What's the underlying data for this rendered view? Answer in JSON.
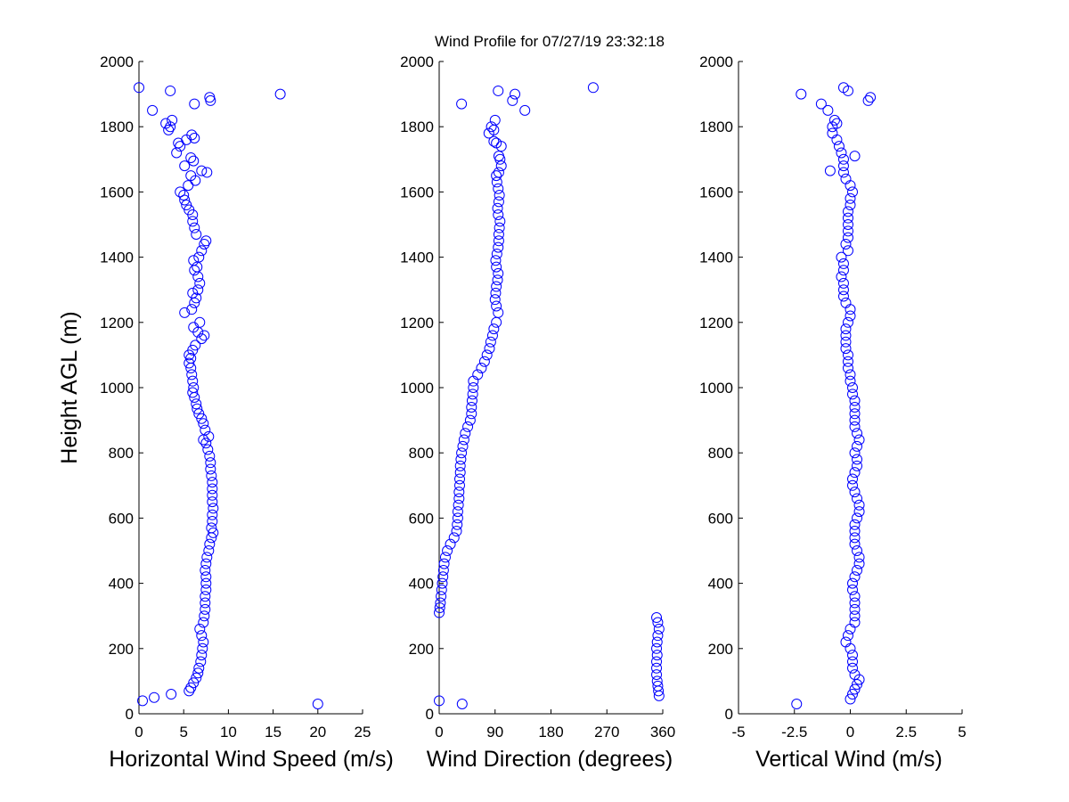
{
  "figure": {
    "title": "Wind Profile for  07/27/19 23:32:18",
    "background": "#ffffff",
    "marker_color": "#0000ff"
  },
  "chart_data": [
    {
      "type": "scatter",
      "id": "speed",
      "xlabel": "Horizontal Wind Speed (m/s)",
      "ylabel": "Height AGL (m)",
      "xlim": [
        0,
        25
      ],
      "ylim": [
        0,
        2000
      ],
      "xticks": [
        0,
        5,
        10,
        15,
        20,
        25
      ],
      "xtick_labels": [
        "0",
        "5",
        "10",
        "15",
        "20",
        "25"
      ],
      "yticks": [
        0,
        200,
        400,
        600,
        800,
        1000,
        1200,
        1400,
        1600,
        1800,
        2000
      ],
      "ytick_labels": [
        "0",
        "200",
        "400",
        "600",
        "800",
        "1000",
        "1200",
        "1400",
        "1600",
        "1800",
        "2000"
      ],
      "marker": "open-circle",
      "grid": false,
      "points": [
        [
          0.4,
          40
        ],
        [
          1.7,
          50
        ],
        [
          3.6,
          60
        ],
        [
          20,
          30
        ],
        [
          5.6,
          70
        ],
        [
          5.8,
          80
        ],
        [
          6.1,
          95
        ],
        [
          6.4,
          110
        ],
        [
          6.6,
          125
        ],
        [
          6.7,
          140
        ],
        [
          6.9,
          160
        ],
        [
          7.0,
          180
        ],
        [
          7.1,
          200
        ],
        [
          7.2,
          220
        ],
        [
          7.0,
          240
        ],
        [
          6.8,
          260
        ],
        [
          7.2,
          280
        ],
        [
          7.3,
          300
        ],
        [
          7.4,
          320
        ],
        [
          7.4,
          340
        ],
        [
          7.4,
          360
        ],
        [
          7.5,
          380
        ],
        [
          7.5,
          400
        ],
        [
          7.5,
          420
        ],
        [
          7.4,
          440
        ],
        [
          7.5,
          460
        ],
        [
          7.6,
          480
        ],
        [
          7.8,
          500
        ],
        [
          7.9,
          520
        ],
        [
          8.1,
          540
        ],
        [
          8.3,
          555
        ],
        [
          8.1,
          570
        ],
        [
          8.2,
          590
        ],
        [
          8.2,
          610
        ],
        [
          8.3,
          630
        ],
        [
          8.2,
          650
        ],
        [
          8.2,
          670
        ],
        [
          8.2,
          690
        ],
        [
          8.2,
          710
        ],
        [
          8.1,
          730
        ],
        [
          8.0,
          750
        ],
        [
          8.0,
          770
        ],
        [
          7.9,
          790
        ],
        [
          7.7,
          810
        ],
        [
          7.5,
          830
        ],
        [
          7.2,
          840
        ],
        [
          7.8,
          850
        ],
        [
          7.4,
          870
        ],
        [
          7.2,
          890
        ],
        [
          7.0,
          905
        ],
        [
          6.7,
          920
        ],
        [
          6.5,
          935
        ],
        [
          6.4,
          950
        ],
        [
          6.2,
          970
        ],
        [
          6.0,
          985
        ],
        [
          6.1,
          1000
        ],
        [
          6.0,
          1020
        ],
        [
          5.9,
          1040
        ],
        [
          5.8,
          1060
        ],
        [
          5.6,
          1075
        ],
        [
          5.8,
          1090
        ],
        [
          5.6,
          1100
        ],
        [
          6.0,
          1115
        ],
        [
          6.3,
          1130
        ],
        [
          7.0,
          1150
        ],
        [
          7.3,
          1160
        ],
        [
          6.6,
          1170
        ],
        [
          6.1,
          1185
        ],
        [
          6.8,
          1200
        ],
        [
          5.1,
          1230
        ],
        [
          5.9,
          1240
        ],
        [
          6.2,
          1260
        ],
        [
          6.4,
          1275
        ],
        [
          6.0,
          1290
        ],
        [
          6.6,
          1300
        ],
        [
          6.8,
          1320
        ],
        [
          6.6,
          1340
        ],
        [
          6.2,
          1360
        ],
        [
          6.5,
          1370
        ],
        [
          6.1,
          1390
        ],
        [
          6.7,
          1400
        ],
        [
          7.0,
          1420
        ],
        [
          7.3,
          1440
        ],
        [
          7.5,
          1450
        ],
        [
          6.4,
          1470
        ],
        [
          6.2,
          1490
        ],
        [
          6.0,
          1510
        ],
        [
          6.0,
          1530
        ],
        [
          5.6,
          1545
        ],
        [
          5.3,
          1560
        ],
        [
          5.1,
          1575
        ],
        [
          5.0,
          1590
        ],
        [
          4.6,
          1600
        ],
        [
          5.5,
          1620
        ],
        [
          6.3,
          1635
        ],
        [
          5.8,
          1650
        ],
        [
          7.0,
          1665
        ],
        [
          7.6,
          1660
        ],
        [
          5.1,
          1680
        ],
        [
          6.1,
          1695
        ],
        [
          5.8,
          1705
        ],
        [
          4.2,
          1720
        ],
        [
          4.6,
          1740
        ],
        [
          4.4,
          1750
        ],
        [
          5.3,
          1760
        ],
        [
          5.9,
          1775
        ],
        [
          6.2,
          1765
        ],
        [
          3.3,
          1790
        ],
        [
          3.5,
          1800
        ],
        [
          3.0,
          1810
        ],
        [
          3.7,
          1820
        ],
        [
          1.5,
          1850
        ],
        [
          6.2,
          1870
        ],
        [
          7.9,
          1890
        ],
        [
          8.0,
          1880
        ],
        [
          3.5,
          1910
        ],
        [
          15.8,
          1900
        ],
        [
          0,
          1920
        ]
      ]
    },
    {
      "type": "scatter",
      "id": "direction",
      "xlabel": "Wind Direction (degrees)",
      "ylabel": "",
      "xlim": [
        0,
        360
      ],
      "ylim": [
        0,
        2000
      ],
      "xticks": [
        0,
        90,
        180,
        270,
        360
      ],
      "xtick_labels": [
        "0",
        "90",
        "180",
        "270",
        "360"
      ],
      "yticks": [
        0,
        200,
        400,
        600,
        800,
        1000,
        1200,
        1400,
        1600,
        1800,
        2000
      ],
      "ytick_labels": [
        "0",
        "200",
        "400",
        "600",
        "800",
        "1000",
        "1200",
        "1400",
        "1600",
        "1800",
        "2000"
      ],
      "marker": "open-circle",
      "grid": false,
      "points": [
        [
          0,
          40
        ],
        [
          37,
          30
        ],
        [
          354,
          55
        ],
        [
          353,
          70
        ],
        [
          352,
          85
        ],
        [
          351,
          100
        ],
        [
          350,
          120
        ],
        [
          350,
          140
        ],
        [
          350,
          160
        ],
        [
          351,
          180
        ],
        [
          350,
          200
        ],
        [
          351,
          220
        ],
        [
          352,
          240
        ],
        [
          354,
          260
        ],
        [
          352,
          280
        ],
        [
          350,
          295
        ],
        [
          0,
          310
        ],
        [
          1,
          325
        ],
        [
          2,
          340
        ],
        [
          3,
          360
        ],
        [
          4,
          380
        ],
        [
          5,
          400
        ],
        [
          6,
          420
        ],
        [
          7,
          440
        ],
        [
          8,
          460
        ],
        [
          10,
          480
        ],
        [
          13,
          500
        ],
        [
          18,
          520
        ],
        [
          24,
          540
        ],
        [
          28,
          560
        ],
        [
          29,
          580
        ],
        [
          30,
          600
        ],
        [
          30,
          620
        ],
        [
          31,
          640
        ],
        [
          32,
          660
        ],
        [
          32,
          680
        ],
        [
          33,
          700
        ],
        [
          33,
          720
        ],
        [
          34,
          740
        ],
        [
          34,
          760
        ],
        [
          35,
          780
        ],
        [
          36,
          800
        ],
        [
          38,
          820
        ],
        [
          40,
          840
        ],
        [
          42,
          860
        ],
        [
          46,
          880
        ],
        [
          50,
          900
        ],
        [
          52,
          920
        ],
        [
          52,
          940
        ],
        [
          53,
          960
        ],
        [
          54,
          980
        ],
        [
          55,
          1000
        ],
        [
          55,
          1020
        ],
        [
          62,
          1040
        ],
        [
          68,
          1060
        ],
        [
          73,
          1080
        ],
        [
          77,
          1100
        ],
        [
          81,
          1120
        ],
        [
          83,
          1140
        ],
        [
          86,
          1160
        ],
        [
          88,
          1180
        ],
        [
          92,
          1200
        ],
        [
          95,
          1230
        ],
        [
          92,
          1250
        ],
        [
          90,
          1270
        ],
        [
          91,
          1290
        ],
        [
          92,
          1310
        ],
        [
          94,
          1330
        ],
        [
          95,
          1350
        ],
        [
          92,
          1370
        ],
        [
          91,
          1390
        ],
        [
          93,
          1410
        ],
        [
          95,
          1430
        ],
        [
          96,
          1450
        ],
        [
          96,
          1470
        ],
        [
          97,
          1490
        ],
        [
          98,
          1510
        ],
        [
          95,
          1530
        ],
        [
          94,
          1550
        ],
        [
          96,
          1570
        ],
        [
          97,
          1590
        ],
        [
          95,
          1610
        ],
        [
          93,
          1630
        ],
        [
          92,
          1650
        ],
        [
          96,
          1660
        ],
        [
          100,
          1680
        ],
        [
          98,
          1700
        ],
        [
          96,
          1710
        ],
        [
          100,
          1740
        ],
        [
          92,
          1750
        ],
        [
          88,
          1755
        ],
        [
          80,
          1780
        ],
        [
          84,
          1800
        ],
        [
          90,
          1820
        ],
        [
          88,
          1790
        ],
        [
          36,
          1870
        ],
        [
          118,
          1880
        ],
        [
          122,
          1900
        ],
        [
          95,
          1910
        ],
        [
          138,
          1850
        ],
        [
          248,
          1920
        ]
      ]
    },
    {
      "type": "scatter",
      "id": "vertical",
      "xlabel": "Vertical Wind (m/s)",
      "ylabel": "",
      "xlim": [
        -5,
        5
      ],
      "ylim": [
        0,
        2000
      ],
      "xticks": [
        -5,
        -2.5,
        0,
        2.5,
        5
      ],
      "xtick_labels": [
        "-5",
        "-2.5",
        "0",
        "2.5",
        "5"
      ],
      "yticks": [
        0,
        200,
        400,
        600,
        800,
        1000,
        1200,
        1400,
        1600,
        1800,
        2000
      ],
      "ytick_labels": [
        "0",
        "200",
        "400",
        "600",
        "800",
        "1000",
        "1200",
        "1400",
        "1600",
        "1800",
        "2000"
      ],
      "marker": "open-circle",
      "grid": false,
      "points": [
        [
          -2.4,
          30
        ],
        [
          0,
          45
        ],
        [
          0.1,
          60
        ],
        [
          0.2,
          75
        ],
        [
          0.3,
          90
        ],
        [
          0.4,
          105
        ],
        [
          0.2,
          120
        ],
        [
          0.1,
          140
        ],
        [
          0.1,
          160
        ],
        [
          0.1,
          180
        ],
        [
          0,
          200
        ],
        [
          -0.2,
          220
        ],
        [
          -0.1,
          240
        ],
        [
          0,
          260
        ],
        [
          0.2,
          280
        ],
        [
          0.2,
          300
        ],
        [
          0.2,
          320
        ],
        [
          0.2,
          340
        ],
        [
          0.2,
          360
        ],
        [
          0.1,
          380
        ],
        [
          0.1,
          400
        ],
        [
          0.2,
          420
        ],
        [
          0.3,
          440
        ],
        [
          0.4,
          460
        ],
        [
          0.4,
          480
        ],
        [
          0.3,
          500
        ],
        [
          0.2,
          520
        ],
        [
          0.2,
          540
        ],
        [
          0.2,
          560
        ],
        [
          0.2,
          580
        ],
        [
          0.3,
          600
        ],
        [
          0.4,
          620
        ],
        [
          0.4,
          640
        ],
        [
          0.3,
          660
        ],
        [
          0.2,
          680
        ],
        [
          0.1,
          700
        ],
        [
          0.1,
          720
        ],
        [
          0.2,
          740
        ],
        [
          0.3,
          760
        ],
        [
          0.3,
          780
        ],
        [
          0.2,
          800
        ],
        [
          0.3,
          820
        ],
        [
          0.4,
          840
        ],
        [
          0.3,
          860
        ],
        [
          0.2,
          880
        ],
        [
          0.2,
          900
        ],
        [
          0.2,
          920
        ],
        [
          0.2,
          940
        ],
        [
          0.2,
          960
        ],
        [
          0.1,
          980
        ],
        [
          0.1,
          1000
        ],
        [
          0,
          1020
        ],
        [
          0,
          1040
        ],
        [
          -0.1,
          1060
        ],
        [
          -0.1,
          1080
        ],
        [
          -0.1,
          1100
        ],
        [
          -0.2,
          1120
        ],
        [
          -0.2,
          1140
        ],
        [
          -0.2,
          1160
        ],
        [
          -0.2,
          1180
        ],
        [
          -0.1,
          1200
        ],
        [
          0,
          1220
        ],
        [
          0,
          1240
        ],
        [
          -0.2,
          1260
        ],
        [
          -0.3,
          1280
        ],
        [
          -0.3,
          1300
        ],
        [
          -0.3,
          1320
        ],
        [
          -0.4,
          1340
        ],
        [
          -0.3,
          1360
        ],
        [
          -0.3,
          1380
        ],
        [
          -0.4,
          1400
        ],
        [
          -0.1,
          1420
        ],
        [
          -0.2,
          1440
        ],
        [
          -0.1,
          1460
        ],
        [
          -0.1,
          1480
        ],
        [
          -0.1,
          1500
        ],
        [
          -0.1,
          1520
        ],
        [
          -0.1,
          1540
        ],
        [
          0,
          1560
        ],
        [
          0,
          1580
        ],
        [
          0.1,
          1600
        ],
        [
          0,
          1620
        ],
        [
          -0.2,
          1640
        ],
        [
          -0.3,
          1660
        ],
        [
          -0.3,
          1680
        ],
        [
          -0.3,
          1700
        ],
        [
          -0.4,
          1720
        ],
        [
          -0.5,
          1740
        ],
        [
          -0.6,
          1760
        ],
        [
          -0.8,
          1780
        ],
        [
          -0.8,
          1800
        ],
        [
          -0.6,
          1810
        ],
        [
          -0.7,
          1820
        ],
        [
          -1.0,
          1850
        ],
        [
          -1.3,
          1870
        ],
        [
          -2.2,
          1900
        ],
        [
          -0.3,
          1920
        ],
        [
          -0.1,
          1910
        ],
        [
          0.8,
          1880
        ],
        [
          0.9,
          1890
        ],
        [
          0.2,
          1710
        ],
        [
          -0.9,
          1665
        ]
      ]
    }
  ]
}
